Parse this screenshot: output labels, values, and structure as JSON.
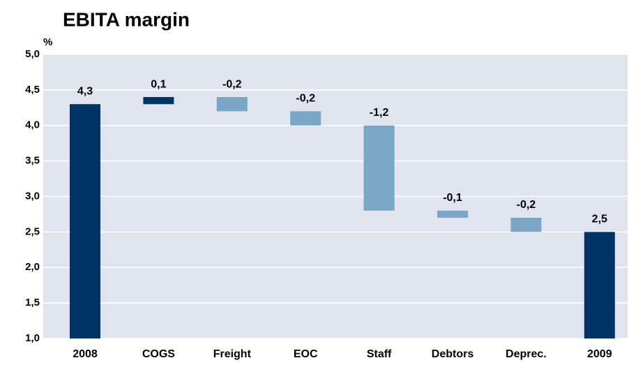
{
  "chart_data": {
    "type": "waterfall",
    "title": "EBITA margin",
    "y_axis_label": "%",
    "categories": [
      "2008",
      "COGS",
      "Freight",
      "EOC",
      "Staff",
      "Debtors",
      "Deprec.",
      "2009"
    ],
    "values": [
      4.3,
      0.1,
      -0.2,
      -0.2,
      -1.2,
      -0.1,
      -0.2,
      2.5
    ],
    "value_labels": [
      "4,3",
      "0,1",
      "-0,2",
      "-0,2",
      "-1,2",
      "-0,1",
      "-0,2",
      "2,5"
    ],
    "colors": [
      "#003366",
      "#003366",
      "#7ba7c7",
      "#7ba7c7",
      "#7ba7c7",
      "#7ba7c7",
      "#7ba7c7",
      "#003366"
    ],
    "ylim": [
      1.0,
      5.0
    ],
    "yticks": [
      {
        "value": 1.0,
        "label": "1,0"
      },
      {
        "value": 1.5,
        "label": "1,5"
      },
      {
        "value": 2.0,
        "label": "2,0"
      },
      {
        "value": 2.5,
        "label": "2,5"
      },
      {
        "value": 3.0,
        "label": "3,0"
      },
      {
        "value": 3.5,
        "label": "3,5"
      },
      {
        "value": 4.0,
        "label": "4,0"
      },
      {
        "value": 4.5,
        "label": "4,5"
      },
      {
        "value": 5.0,
        "label": "5,0"
      }
    ],
    "grid": true,
    "plot_background": "#dfe4ee"
  }
}
